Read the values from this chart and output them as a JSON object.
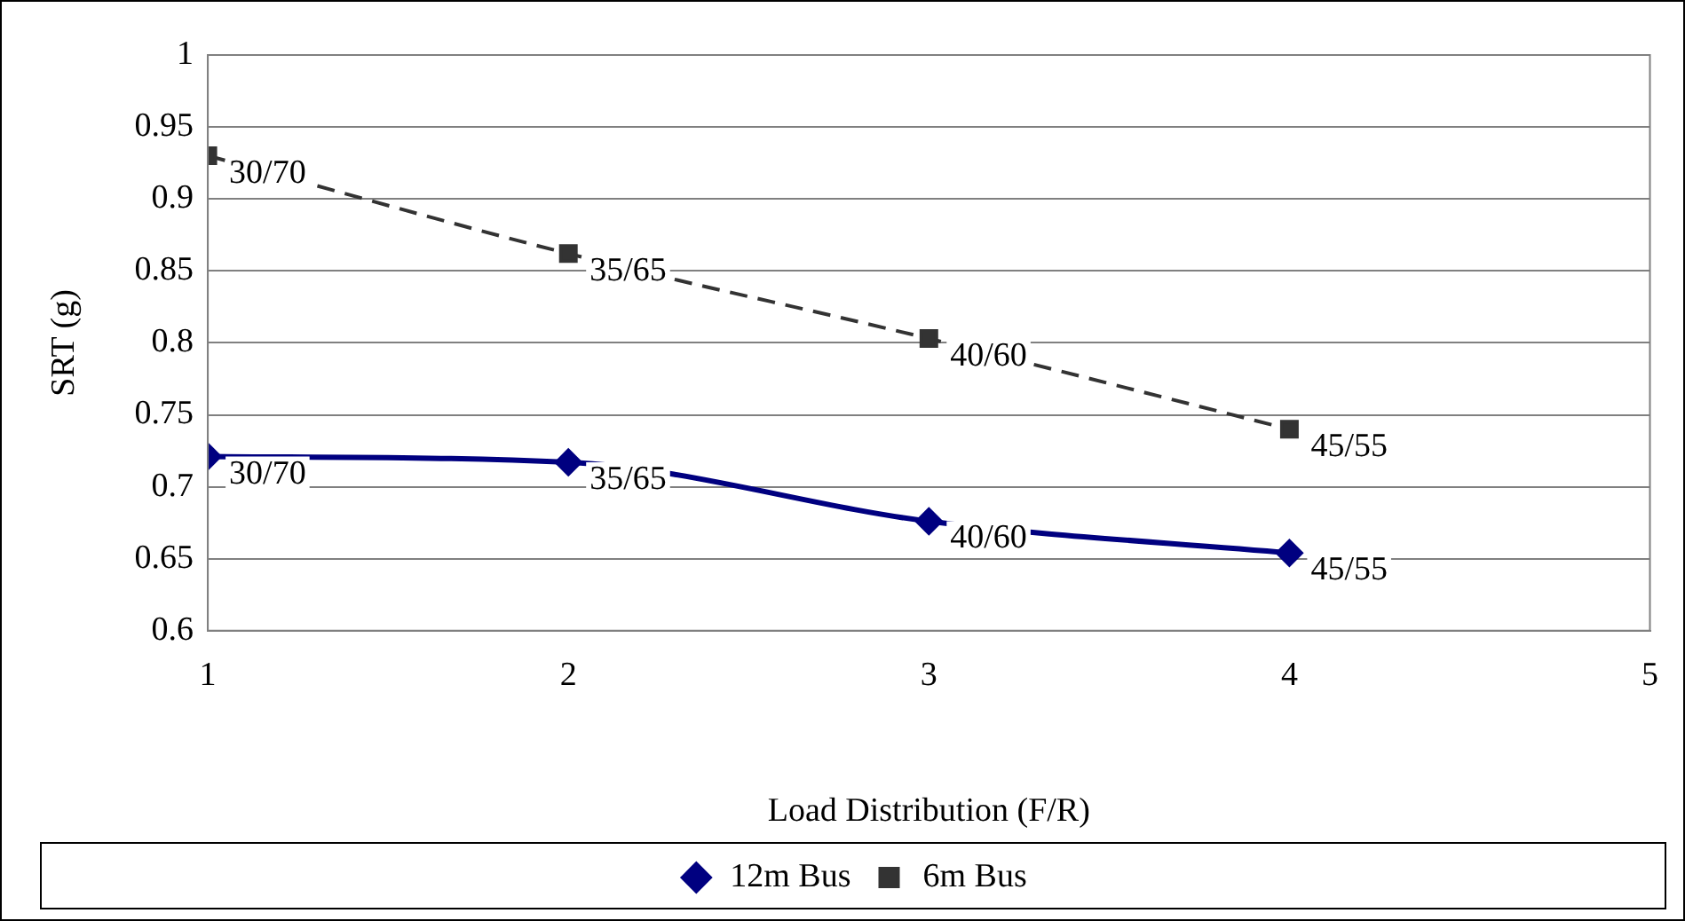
{
  "chart_data": {
    "type": "line",
    "xlabel": "Load Distribution (F/R)",
    "ylabel": "SRT (g)",
    "x": [
      1,
      2,
      3,
      4
    ],
    "series": [
      {
        "name": "12m Bus",
        "color": "#000080",
        "values": [
          0.721,
          0.717,
          0.676,
          0.654
        ],
        "marker": "diamond",
        "line_style": "solid"
      },
      {
        "name": "6m Bus",
        "color": "#333333",
        "values": [
          0.93,
          0.862,
          0.803,
          0.74
        ],
        "marker": "square",
        "line_style": "dashed"
      }
    ],
    "xlim": [
      1,
      5
    ],
    "xticks": [
      1,
      2,
      3,
      4,
      5
    ],
    "ylim": [
      0.6,
      1
    ],
    "yticks": [
      0.6,
      0.65,
      0.7,
      0.75,
      0.8,
      0.85,
      0.9,
      0.95,
      1
    ],
    "grid": "y",
    "legend": "bottom",
    "annotations": [
      {
        "text": "30/70",
        "x": 1,
        "y": 0.721
      },
      {
        "text": "35/65",
        "x": 2,
        "y": 0.717
      },
      {
        "text": "40/60",
        "x": 3,
        "y": 0.676
      },
      {
        "text": "45/55",
        "x": 4,
        "y": 0.654
      },
      {
        "text": "30/70",
        "x": 1,
        "y": 0.93
      },
      {
        "text": "35/65",
        "x": 2,
        "y": 0.862
      },
      {
        "text": "40/60",
        "x": 3,
        "y": 0.803
      },
      {
        "text": "45/55",
        "x": 4,
        "y": 0.74
      }
    ]
  }
}
